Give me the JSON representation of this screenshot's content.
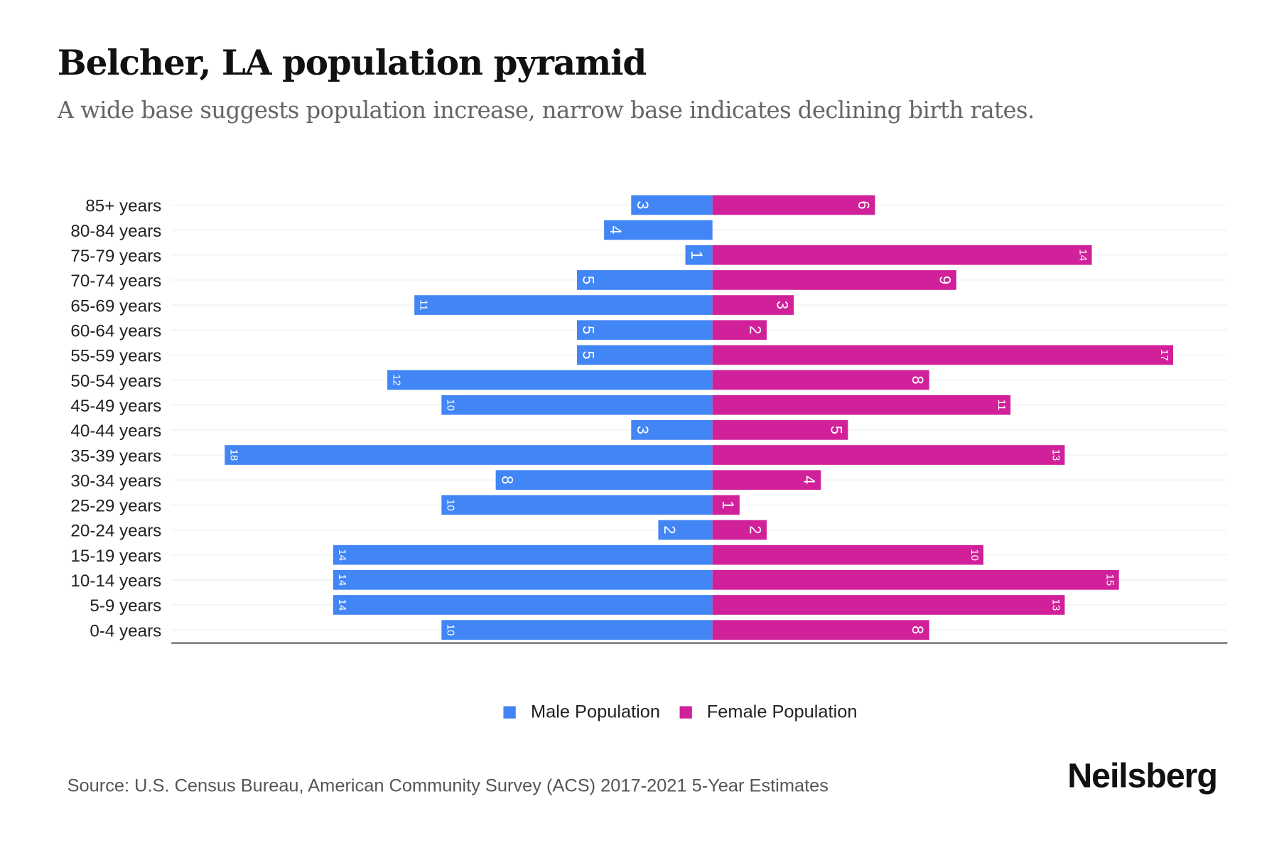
{
  "title": "Belcher, LA population pyramid",
  "subtitle": "A wide base suggests population increase, narrow base indicates declining birth rates.",
  "source": "Source: U.S. Census Bureau, American Community Survey (ACS) 2017-2021 5-Year Estimates",
  "brand": "Neilsberg",
  "chart_data": {
    "type": "bar",
    "orientation": "horizontal-pyramid",
    "categories": [
      "85+ years",
      "80-84 years",
      "75-79 years",
      "70-74 years",
      "65-69 years",
      "60-64 years",
      "55-59 years",
      "50-54 years",
      "45-49 years",
      "40-44 years",
      "35-39 years",
      "30-34 years",
      "25-29 years",
      "20-24 years",
      "15-19 years",
      "10-14 years",
      "5-9 years",
      "0-4 years"
    ],
    "series": [
      {
        "name": "Male Population",
        "color": "#4285F4",
        "values": [
          3,
          4,
          1,
          5,
          11,
          5,
          5,
          12,
          10,
          3,
          18,
          8,
          10,
          2,
          14,
          14,
          14,
          10
        ]
      },
      {
        "name": "Female Population",
        "color": "#D0219A",
        "values": [
          6,
          0,
          14,
          9,
          3,
          2,
          17,
          8,
          11,
          5,
          13,
          4,
          1,
          2,
          10,
          15,
          13,
          8
        ]
      }
    ],
    "xlim": [
      -20,
      19
    ],
    "grid": true,
    "legend": "bottom-center"
  }
}
